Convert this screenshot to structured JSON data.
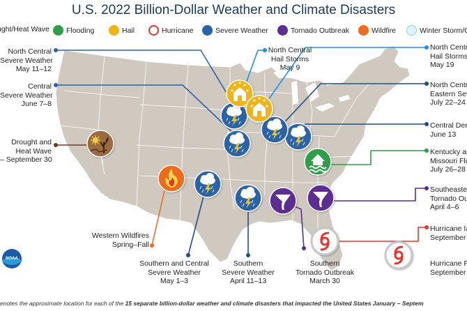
{
  "title": "U.S. 2022 Billion-Dollar Weather and Climate Disasters",
  "legend": [
    {
      "label": "ught/Heat Wave",
      "icon": "drought-icon",
      "color": "#9b6a3c"
    },
    {
      "label": "Flooding",
      "icon": "flooding-icon",
      "color": "#2e9e48"
    },
    {
      "label": "Hail",
      "icon": "hail-icon",
      "color": "#f0b418"
    },
    {
      "label": "Hurricane",
      "icon": "hurricane-icon",
      "color": "#e8332a"
    },
    {
      "label": "Severe Weather",
      "icon": "severe-weather-icon",
      "color": "#2a63a8"
    },
    {
      "label": "Tornado Outbreak",
      "icon": "tornado-icon",
      "color": "#5c2d91"
    },
    {
      "label": "Wildfire",
      "icon": "wildfire-icon",
      "color": "#ef6b1f"
    },
    {
      "label": "Winter Storm/C",
      "icon": "winter-storm-icon",
      "color": "#8fd3f0"
    }
  ],
  "events": {
    "nc_severe": {
      "lines": [
        "North Central",
        "Severe Weather",
        "May 11–12"
      ],
      "color": "#2a63a8"
    },
    "c_severe": {
      "lines": [
        "Central",
        "Severe Weather",
        "June 7–8"
      ],
      "color": "#2a63a8"
    },
    "drought": {
      "lines": [
        "Drought and",
        "Heat Wave",
        "– September 30"
      ],
      "color": "#6b3b1c"
    },
    "nc_hail_9": {
      "lines": [
        "North Central",
        "Hail Storms",
        "May 9"
      ],
      "color": "#1e90e6"
    },
    "nc_hail_19": {
      "lines": [
        "North Centr",
        "Hail Storms",
        "May 19"
      ],
      "color": "#1e90e6"
    },
    "nc_east": {
      "lines": [
        "North Centr",
        "Eastern Sev",
        "July 22–24"
      ],
      "color": "#1f4f86"
    },
    "central_derecho": {
      "lines": [
        "Central Der",
        "June 13"
      ],
      "color": "#1f4f86"
    },
    "ky_flood": {
      "lines": [
        "Kentucky an",
        "Missouri Flo",
        "July 26–28"
      ],
      "color": "#2e9e48"
    },
    "se_tornado": {
      "lines": [
        "Southeaste",
        "Tornado Ou",
        "April 4–6"
      ],
      "color": "#5c2d91"
    },
    "hurricane_ian": {
      "lines": [
        "Hurricane Ia",
        "September"
      ],
      "color": "#e8332a"
    },
    "hurricane_fiona": {
      "lines": [
        "Hurricane F",
        "September"
      ],
      "color": "#e8332a"
    },
    "wildfires": {
      "lines": [
        "Western Wildfires",
        "Spring–Fall"
      ],
      "color": "#ef6b1f"
    },
    "s_c_severe": {
      "lines": [
        "Southern and Central",
        "Severe Weather",
        "May 1–3"
      ],
      "color": "#1f4f86"
    },
    "s_severe": {
      "lines": [
        "Southern",
        "Severe Weather",
        "April 11–13"
      ],
      "color": "#1f4f86"
    },
    "s_tornado": {
      "lines": [
        "Southern",
        "Tornado Outbreak",
        "March 30"
      ],
      "color": "#5c2d91"
    }
  },
  "footnote_prefix": "enotes the approximate location for each of the ",
  "footnote_bold": "15 separate billion-dollar weather and climate disasters that impacted the United States January – Septem",
  "logo_text": "NOAA"
}
